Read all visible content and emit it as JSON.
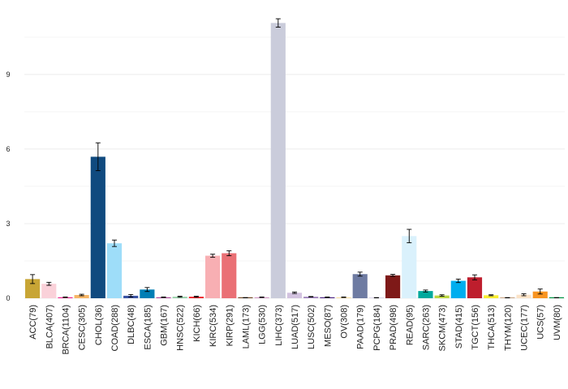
{
  "chart_data": {
    "type": "bar",
    "title": "",
    "xlabel": "",
    "ylabel": "",
    "ylim": [
      0,
      11.3
    ],
    "yticks": [
      0,
      3,
      6,
      9
    ],
    "grid": true,
    "categories": [
      "ACC(79)",
      "BLCA(407)",
      "BRCA(1104)",
      "CESC(305)",
      "CHOL(36)",
      "COAD(288)",
      "DLBC(48)",
      "ESCA(185)",
      "GBM(167)",
      "HNSC(522)",
      "KICH(66)",
      "KIRC(534)",
      "KIRP(291)",
      "LAML(173)",
      "LGG(530)",
      "LIHC(373)",
      "LUAD(517)",
      "LUSC(502)",
      "MESO(87)",
      "OV(308)",
      "PAAD(179)",
      "PCPG(184)",
      "PRAD(498)",
      "READ(95)",
      "SARC(263)",
      "SKCM(473)",
      "STAD(415)",
      "TGCT(156)",
      "THCA(513)",
      "THYM(120)",
      "UCEC(177)",
      "UCS(57)",
      "UVM(80)"
    ],
    "values": [
      0.77,
      0.58,
      0.04,
      0.13,
      5.69,
      2.21,
      0.1,
      0.35,
      0.04,
      0.06,
      0.06,
      1.71,
      1.81,
      0.02,
      0.04,
      11.07,
      0.22,
      0.06,
      0.04,
      0.04,
      0.97,
      0.02,
      0.92,
      2.5,
      0.29,
      0.11,
      0.7,
      0.84,
      0.12,
      0.02,
      0.14,
      0.27,
      0.02
    ],
    "errors": [
      0.18,
      0.06,
      0.01,
      0.03,
      0.56,
      0.13,
      0.05,
      0.08,
      0.01,
      0.02,
      0.02,
      0.06,
      0.1,
      0.005,
      0.01,
      0.17,
      0.03,
      0.01,
      0.01,
      0.01,
      0.08,
      0.005,
      0.04,
      0.27,
      0.04,
      0.03,
      0.07,
      0.1,
      0.02,
      0.005,
      0.04,
      0.1,
      0.005
    ],
    "colors": [
      "#C8A535",
      "#FAD1D9",
      "#ED2891",
      "#F6B667",
      "#104A7F",
      "#9EDDF9",
      "#3953A4",
      "#007EB5",
      "#B2509E",
      "#97D1A9",
      "#ED1C24",
      "#F8AFB3",
      "#EA7075",
      "#754C29",
      "#D49DC7",
      "#CACCDB",
      "#D3C3E0",
      "#A084BD",
      "#542C88",
      "#FAE2A7",
      "#6E7BA2",
      "#E1DAEE",
      "#7E1918",
      "#DAF1FC",
      "#00A99D",
      "#BBD642",
      "#00AEEF",
      "#BE1E2D",
      "#F9ED32",
      "#CEAC8F",
      "#FBE3C7",
      "#F89420",
      "#009444"
    ]
  }
}
